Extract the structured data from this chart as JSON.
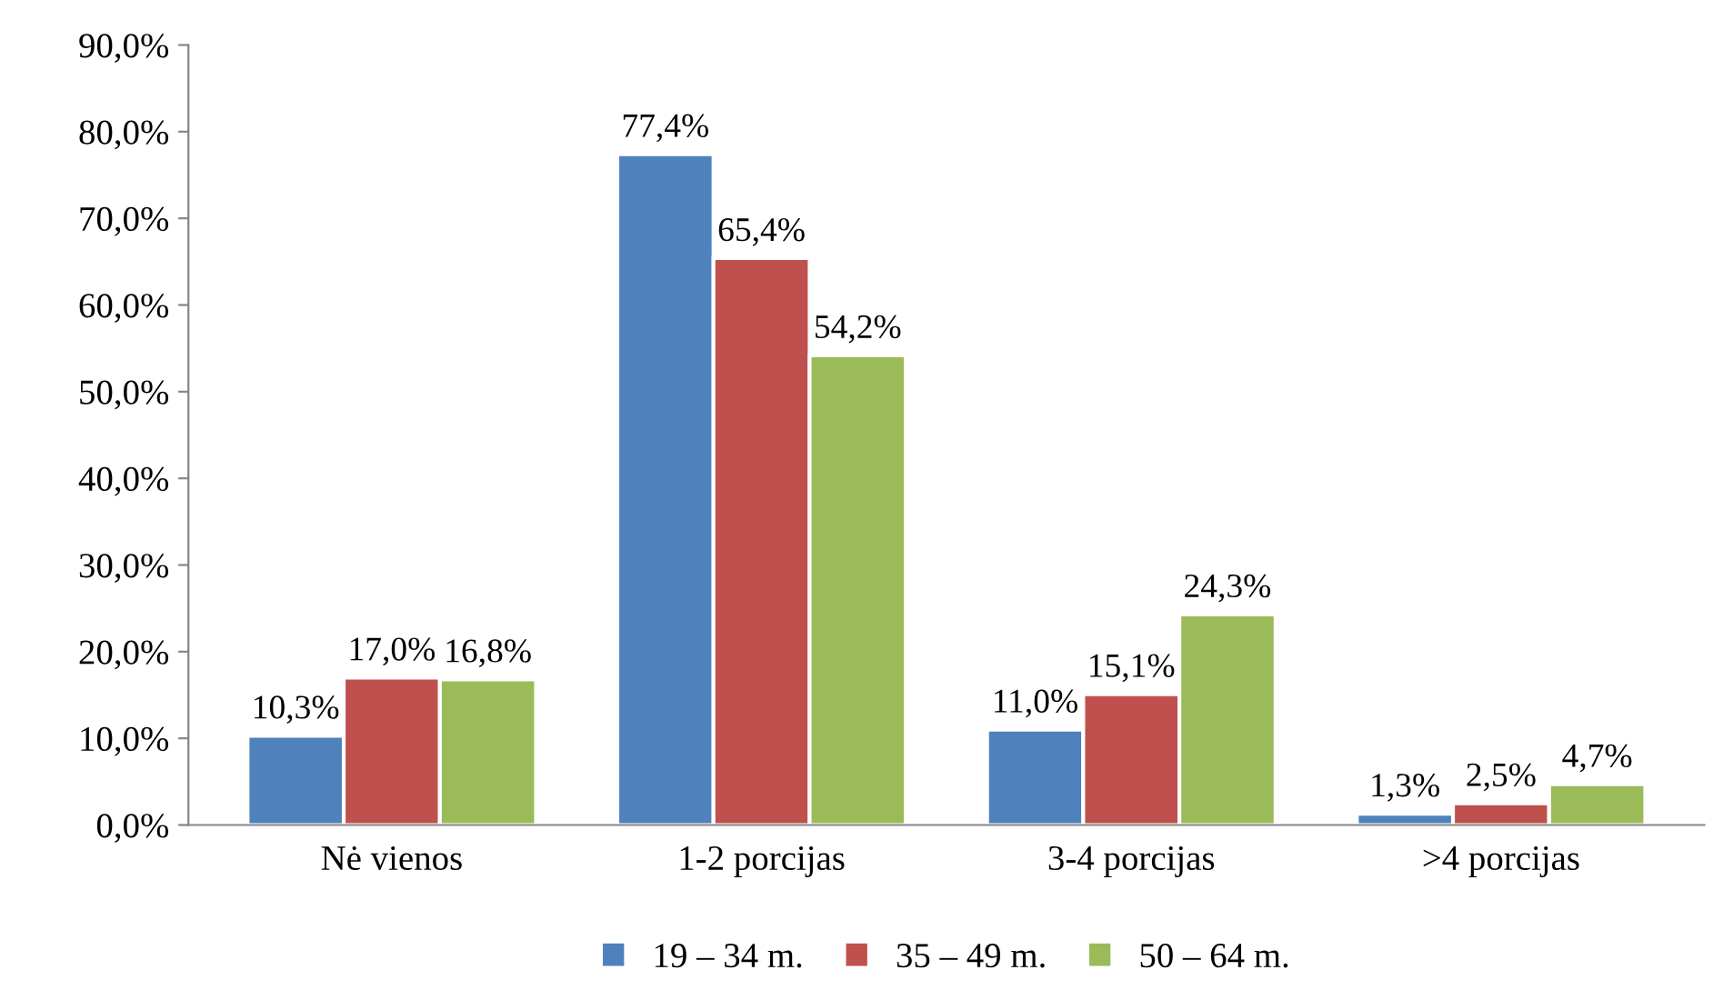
{
  "chart_data": {
    "type": "bar",
    "categories": [
      "Nė vienos",
      "1-2 porcijas",
      "3-4 porcijas",
      ">4 porcijas"
    ],
    "series": [
      {
        "name": "19 – 34 m.",
        "color": "#4f81bd",
        "values": [
          10.3,
          77.4,
          11.0,
          1.3
        ],
        "value_labels": [
          "10,3%",
          "77,4%",
          "11,0%",
          "1,3%"
        ]
      },
      {
        "name": "35 – 49 m.",
        "color": "#c0504d",
        "values": [
          17.0,
          65.4,
          15.1,
          2.5
        ],
        "value_labels": [
          "17,0%",
          "65,4%",
          "15,1%",
          "2,5%"
        ]
      },
      {
        "name": "50 – 64 m.",
        "color": "#9bbb59",
        "values": [
          16.8,
          54.2,
          24.3,
          4.7
        ],
        "value_labels": [
          "16,8%",
          "54,2%",
          "24,3%",
          "4,7%"
        ]
      }
    ],
    "ylim": [
      0,
      90
    ],
    "yticks": [
      {
        "value": 0,
        "label": "0,0%"
      },
      {
        "value": 10,
        "label": "10,0%"
      },
      {
        "value": 20,
        "label": "20,0%"
      },
      {
        "value": 30,
        "label": "30,0%"
      },
      {
        "value": 40,
        "label": "40,0%"
      },
      {
        "value": 50,
        "label": "50,0%"
      },
      {
        "value": 60,
        "label": "60,0%"
      },
      {
        "value": 70,
        "label": "70,0%"
      },
      {
        "value": 80,
        "label": "80,0%"
      },
      {
        "value": 90,
        "label": "90,0%"
      }
    ],
    "grid": false,
    "legend": "bottom"
  }
}
